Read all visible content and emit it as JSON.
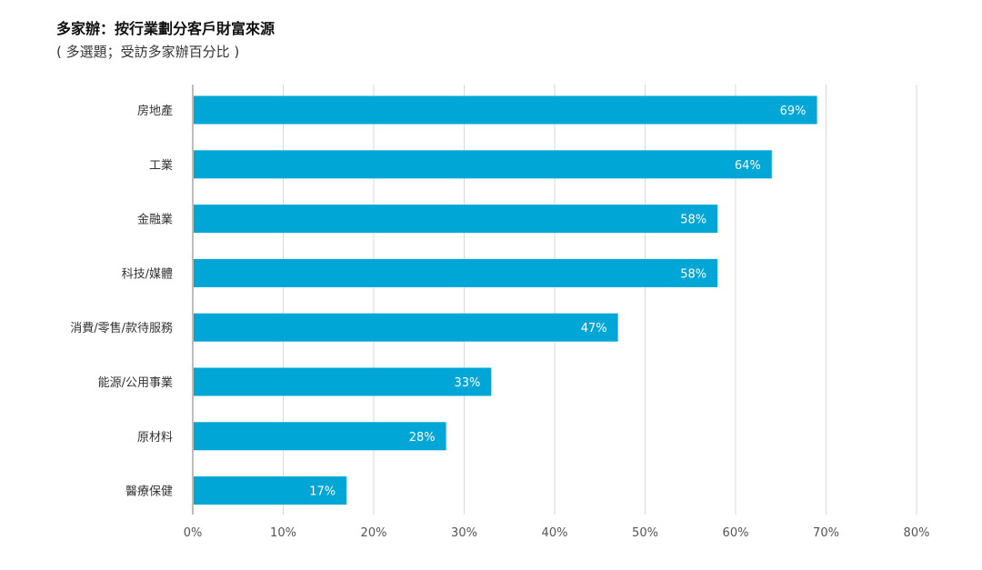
{
  "chart_data": {
    "type": "bar",
    "orientation": "horizontal",
    "title": "多家辦：按行業劃分客戶財富來源",
    "subtitle": "( 多選題；受訪多家辦百分比 )",
    "categories": [
      "房地產",
      "工業",
      "金融業",
      "科技/媒體",
      "消費/零售/款待服務",
      "能源/公用事業",
      "原材料",
      "醫療保健"
    ],
    "values": [
      69,
      64,
      58,
      58,
      47,
      33,
      28,
      17
    ],
    "data_labels": [
      "69%",
      "64%",
      "58%",
      "58%",
      "47%",
      "33%",
      "28%",
      "17%"
    ],
    "xticks": [
      0,
      10,
      20,
      30,
      40,
      50,
      60,
      70,
      80
    ],
    "xtick_labels": [
      "0%",
      "10%",
      "20%",
      "30%",
      "40%",
      "50%",
      "60%",
      "70%",
      "80%"
    ],
    "xlim": [
      0,
      80
    ],
    "grid": "vertical",
    "bar_color": "#00a6d6"
  }
}
